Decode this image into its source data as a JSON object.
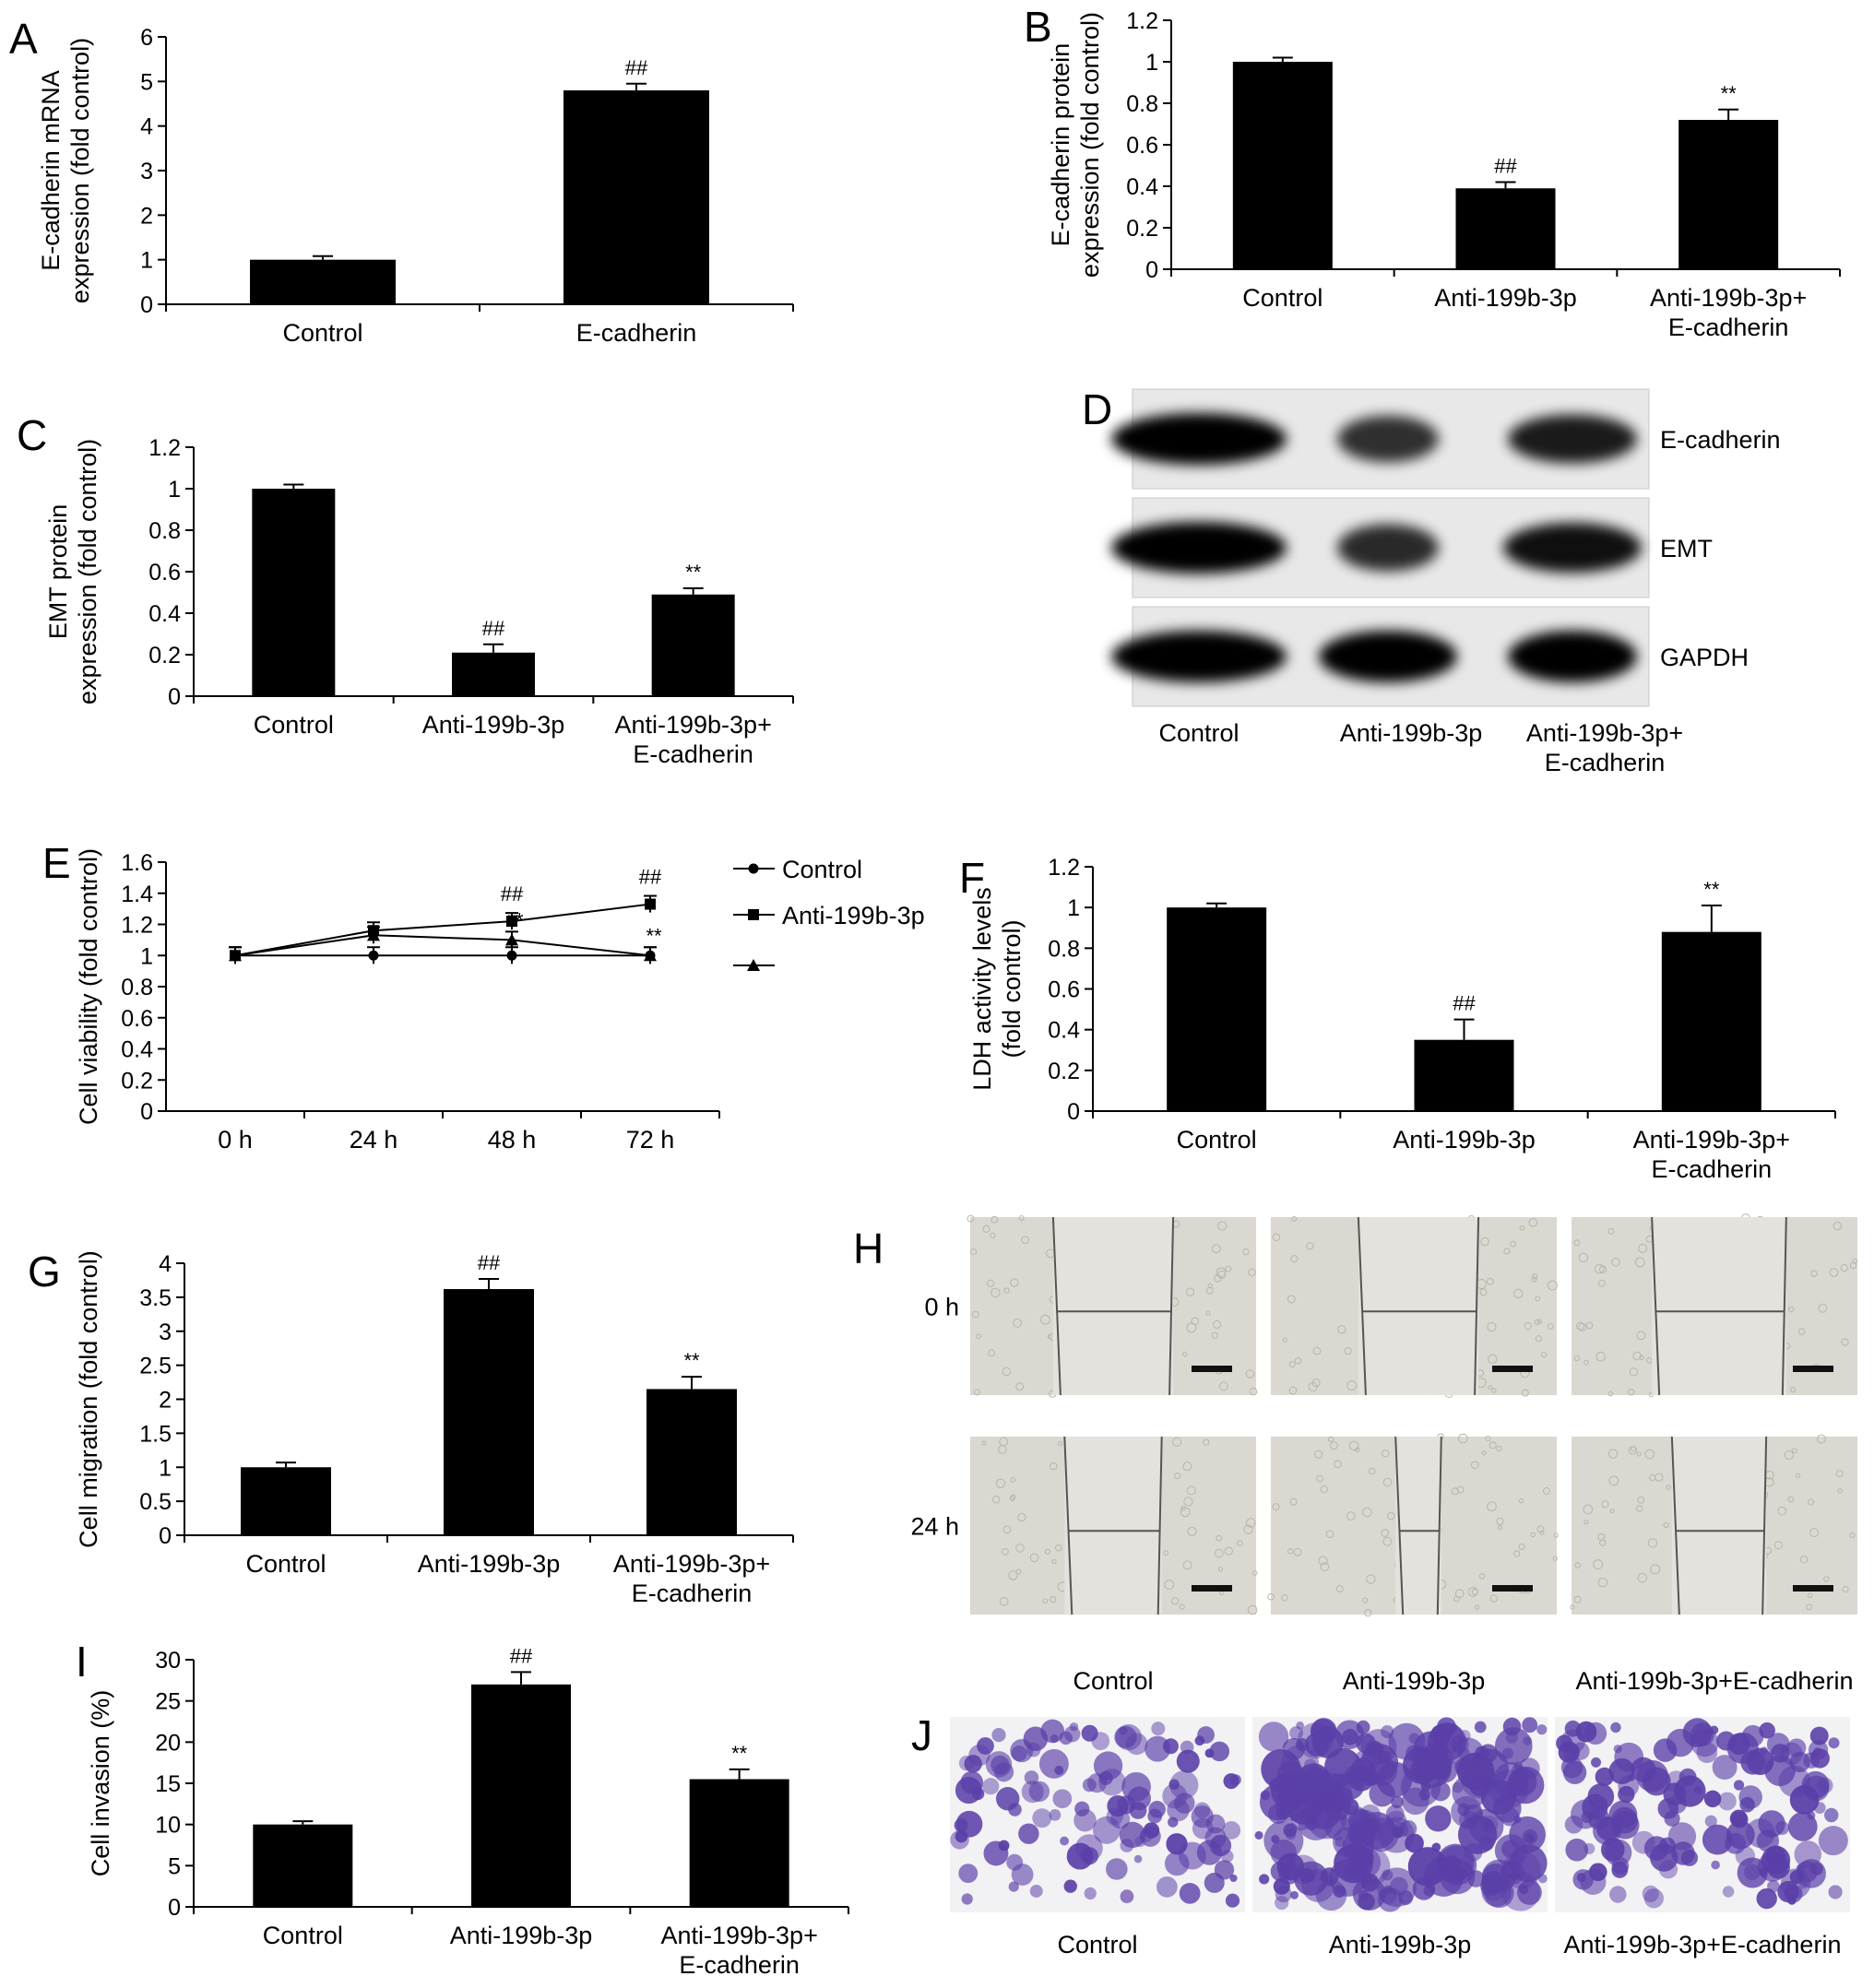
{
  "figure": {
    "panels": [
      {
        "letter": "A"
      },
      {
        "letter": "B"
      },
      {
        "letter": "C"
      },
      {
        "letter": "D"
      },
      {
        "letter": "E"
      },
      {
        "letter": "F"
      },
      {
        "letter": "G"
      },
      {
        "letter": "H"
      },
      {
        "letter": "I"
      },
      {
        "letter": "J"
      }
    ]
  },
  "chart_data": [
    {
      "panel": "A",
      "type": "bar",
      "ylabel_lines": [
        "E-cadherin mRNA",
        "expression (fold control)"
      ],
      "categories": [
        [
          "Control"
        ],
        [
          "E-cadherin"
        ]
      ],
      "values": [
        1.0,
        4.8
      ],
      "errors": [
        0.08,
        0.15
      ],
      "annotations": [
        "",
        "##"
      ],
      "ylim": [
        0,
        6
      ],
      "yticks": [
        0,
        1,
        2,
        3,
        4,
        5,
        6
      ],
      "ytick_labels": [
        "0",
        "1",
        "2",
        "3",
        "4",
        "5",
        "6"
      ]
    },
    {
      "panel": "B",
      "type": "bar",
      "ylabel_lines": [
        "E-cadherin protein",
        "expression (fold control)"
      ],
      "categories": [
        [
          "Control"
        ],
        [
          "Anti-199b-3p"
        ],
        [
          "Anti-199b-3p+",
          "E-cadherin"
        ]
      ],
      "values": [
        1.0,
        0.39,
        0.72
      ],
      "errors": [
        0.02,
        0.03,
        0.05
      ],
      "annotations": [
        "",
        "##",
        "**"
      ],
      "ylim": [
        0,
        1.2
      ],
      "yticks": [
        0,
        0.2,
        0.4,
        0.6,
        0.8,
        1.0,
        1.2
      ],
      "ytick_labels": [
        "0",
        "0.2",
        "0.4",
        "0.6",
        "0.8",
        "1",
        "1.2"
      ]
    },
    {
      "panel": "C",
      "type": "bar",
      "ylabel_lines": [
        "EMT protein",
        "expression (fold control)"
      ],
      "categories": [
        [
          "Control"
        ],
        [
          "Anti-199b-3p"
        ],
        [
          "Anti-199b-3p+",
          "E-cadherin"
        ]
      ],
      "values": [
        1.0,
        0.21,
        0.49
      ],
      "errors": [
        0.02,
        0.04,
        0.03
      ],
      "annotations": [
        "",
        "##",
        "**"
      ],
      "ylim": [
        0,
        1.2
      ],
      "yticks": [
        0,
        0.2,
        0.4,
        0.6,
        0.8,
        1.0,
        1.2
      ],
      "ytick_labels": [
        "0",
        "0.2",
        "0.4",
        "0.6",
        "0.8",
        "1",
        "1.2"
      ]
    },
    {
      "panel": "E",
      "type": "line",
      "ylabel_lines": [
        "Cell viability (fold control)"
      ],
      "x": [
        "0 h",
        "24 h",
        "48 h",
        "72 h"
      ],
      "series": [
        {
          "name": "Control",
          "marker": "circle",
          "values": [
            1.0,
            1.0,
            1.0,
            1.0
          ]
        },
        {
          "name": "Anti-199b-3p",
          "marker": "square",
          "values": [
            1.0,
            1.16,
            1.22,
            1.33
          ]
        },
        {
          "name": "",
          "marker": "triangle",
          "values": [
            1.0,
            1.13,
            1.1,
            1.0
          ]
        }
      ],
      "annotations": [
        {
          "x": "48 h",
          "text": "##"
        },
        {
          "x": "72 h",
          "text": "##"
        },
        {
          "x": "48 h",
          "text": "**"
        },
        {
          "x": "72 h",
          "text": "**"
        }
      ],
      "ylim": [
        0,
        1.6
      ],
      "yticks": [
        0,
        0.2,
        0.4,
        0.6,
        0.8,
        1.0,
        1.2,
        1.4,
        1.6
      ],
      "ytick_labels": [
        "0",
        "0.2",
        "0.4",
        "0.6",
        "0.8",
        "1",
        "1.2",
        "1.4",
        "1.6"
      ]
    },
    {
      "panel": "F",
      "type": "bar",
      "ylabel_lines": [
        "LDH activity levels",
        "(fold control)"
      ],
      "categories": [
        [
          "Control"
        ],
        [
          "Anti-199b-3p"
        ],
        [
          "Anti-199b-3p+",
          "E-cadherin"
        ]
      ],
      "values": [
        1.0,
        0.35,
        0.88
      ],
      "errors": [
        0.02,
        0.1,
        0.13
      ],
      "annotations": [
        "",
        "##",
        "**"
      ],
      "ylim": [
        0,
        1.2
      ],
      "yticks": [
        0,
        0.2,
        0.4,
        0.6,
        0.8,
        1.0,
        1.2
      ],
      "ytick_labels": [
        "0",
        "0.2",
        "0.4",
        "0.6",
        "0.8",
        "1",
        "1.2"
      ]
    },
    {
      "panel": "G",
      "type": "bar",
      "ylabel_lines": [
        "Cell migration (fold control)"
      ],
      "categories": [
        [
          "Control"
        ],
        [
          "Anti-199b-3p"
        ],
        [
          "Anti-199b-3p+",
          "E-cadherin"
        ]
      ],
      "values": [
        1.0,
        3.62,
        2.15
      ],
      "errors": [
        0.07,
        0.15,
        0.18
      ],
      "annotations": [
        "",
        "##",
        "**"
      ],
      "ylim": [
        0,
        4
      ],
      "yticks": [
        0,
        0.5,
        1,
        1.5,
        2,
        2.5,
        3,
        3.5,
        4
      ],
      "ytick_labels": [
        "0",
        "0.5",
        "1",
        "1.5",
        "2",
        "2.5",
        "3",
        "3.5",
        "4"
      ]
    },
    {
      "panel": "I",
      "type": "bar",
      "ylabel_lines": [
        "Cell invasion (%)"
      ],
      "categories": [
        [
          "Control"
        ],
        [
          "Anti-199b-3p"
        ],
        [
          "Anti-199b-3p+",
          "E-cadherin"
        ]
      ],
      "values": [
        10,
        27,
        15.5
      ],
      "errors": [
        0.4,
        1.5,
        1.2
      ],
      "annotations": [
        "",
        "##",
        "**"
      ],
      "ylim": [
        0,
        30
      ],
      "yticks": [
        0,
        5,
        10,
        15,
        20,
        25,
        30
      ],
      "ytick_labels": [
        "0",
        "5",
        "10",
        "15",
        "20",
        "25",
        "30"
      ]
    }
  ],
  "blot": {
    "rows": [
      {
        "label": "E-cadherin",
        "intensity": [
          1.0,
          0.55,
          0.75
        ]
      },
      {
        "label": "EMT",
        "intensity": [
          1.0,
          0.6,
          0.85
        ]
      },
      {
        "label": "GAPDH",
        "intensity": [
          1.0,
          1.0,
          1.0
        ]
      }
    ],
    "lanes": [
      [
        "Control"
      ],
      [
        "Anti-199b-3p"
      ],
      [
        "Anti-199b-3p+",
        "E-cadherin"
      ]
    ]
  },
  "scratch": {
    "rows": [
      "0 h",
      "24 h"
    ],
    "columns": [
      "Control",
      "Anti-199b-3p",
      "Anti-199b-3p+E-cadherin"
    ],
    "gap_fraction": [
      [
        0.42,
        0.42,
        0.47
      ],
      [
        0.34,
        0.16,
        0.33
      ]
    ]
  },
  "invasion": {
    "columns": [
      "Control",
      "Anti-199b-3p",
      "Anti-199b-3p+E-cadherin"
    ],
    "stain_density": [
      0.35,
      0.85,
      0.45
    ]
  },
  "colors": {
    "bar": "#000000",
    "stain": "#5a3fa8",
    "membrane": "#e8e8e8",
    "field": "#dad8d0"
  }
}
